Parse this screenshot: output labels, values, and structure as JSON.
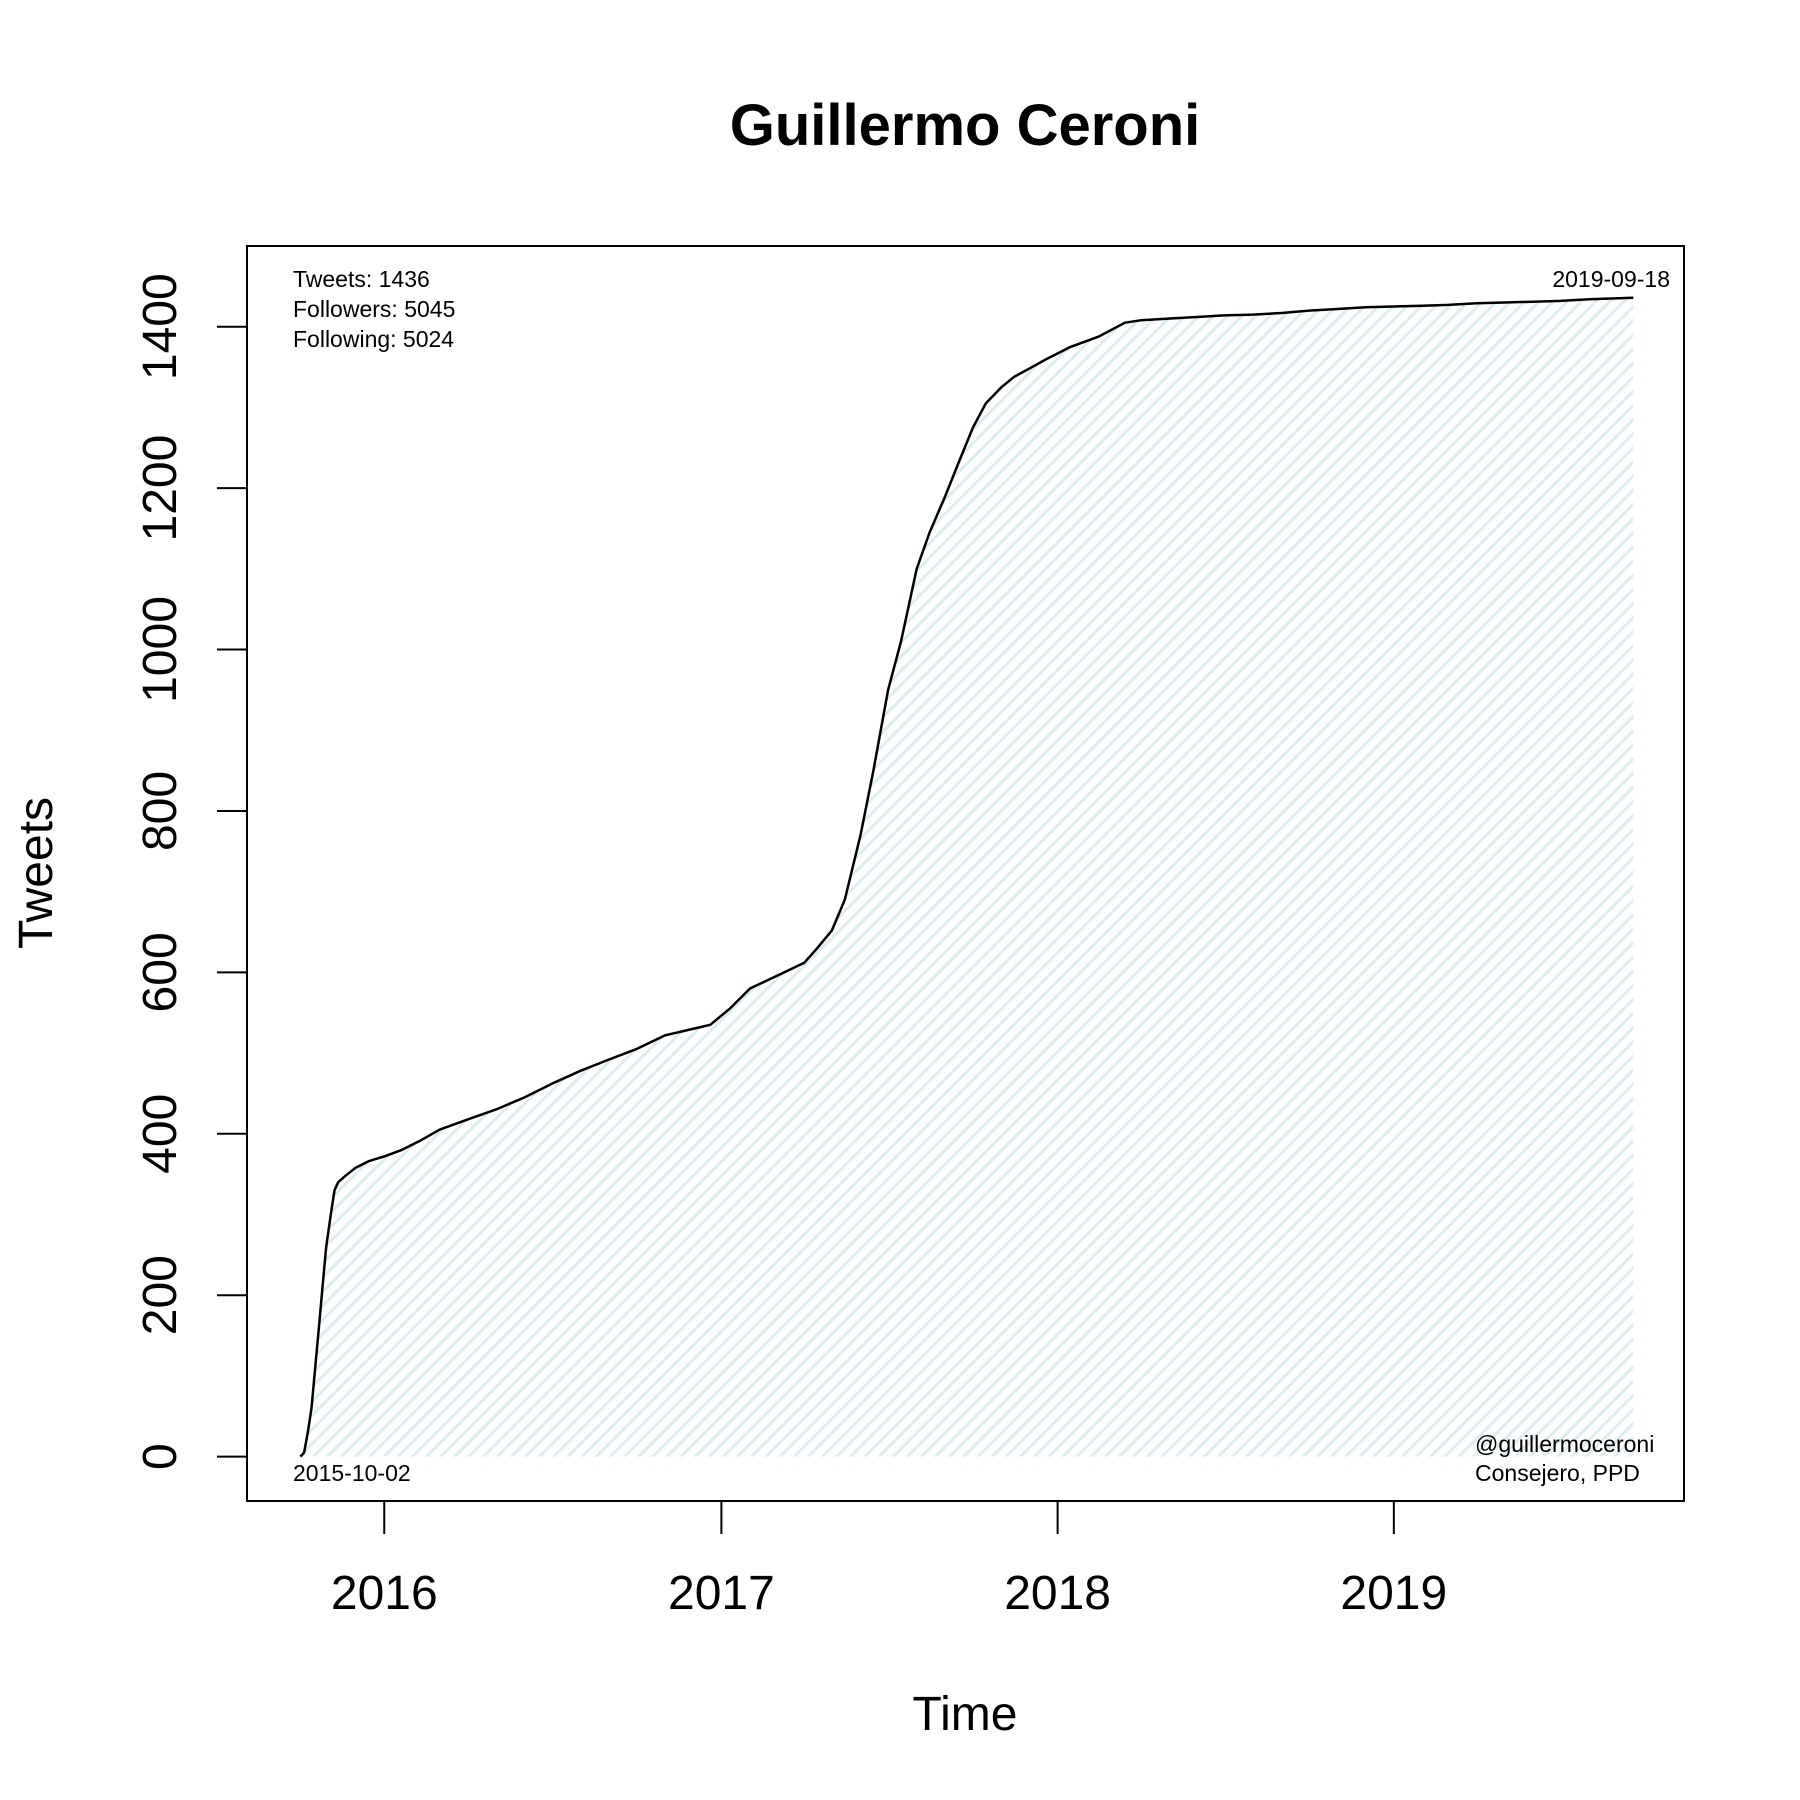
{
  "chart_data": {
    "type": "line",
    "title": "Guillermo Ceroni",
    "xlabel": "Time",
    "ylabel": "Tweets",
    "x_tick_labels": [
      "2016",
      "2017",
      "2018",
      "2019"
    ],
    "x_tick_dates": [
      "2016-01-01",
      "2017-01-01",
      "2018-01-01",
      "2019-01-01"
    ],
    "xlim": [
      "2015-08-05",
      "2019-11-12"
    ],
    "y_ticks": [
      0,
      200,
      400,
      600,
      800,
      1000,
      1200,
      1400
    ],
    "y_tick_labels": [
      "0",
      "200",
      "400",
      "600",
      "800",
      "1000",
      "1200",
      "1400"
    ],
    "ylim": [
      -55,
      1500
    ],
    "fill_color": "#e4f3f5",
    "line_color": "#000000",
    "grid": false,
    "legend": "none",
    "series": [
      {
        "x": [
          "2015-10-02",
          "2015-10-06",
          "2015-10-10",
          "2015-10-14",
          "2015-10-18",
          "2015-10-22",
          "2015-10-26",
          "2015-10-30",
          "2015-11-04",
          "2015-11-08",
          "2015-11-12",
          "2015-11-20",
          "2015-12-01",
          "2015-12-15",
          "2016-01-01",
          "2016-01-20",
          "2016-02-10",
          "2016-03-01",
          "2016-04-01",
          "2016-05-01",
          "2016-06-01",
          "2016-07-01",
          "2016-08-01",
          "2016-09-01",
          "2016-10-01",
          "2016-11-01",
          "2016-12-01",
          "2016-12-20",
          "2017-01-10",
          "2017-02-01",
          "2017-03-01",
          "2017-04-01",
          "2017-04-15",
          "2017-05-01",
          "2017-05-15",
          "2017-06-01",
          "2017-06-15",
          "2017-07-01",
          "2017-07-15",
          "2017-08-01",
          "2017-08-15",
          "2017-09-01",
          "2017-09-15",
          "2017-10-01",
          "2017-10-15",
          "2017-11-01",
          "2017-11-15",
          "2017-12-01",
          "2017-12-20",
          "2018-01-15",
          "2018-02-15",
          "2018-03-15",
          "2018-04-01",
          "2018-05-01",
          "2018-06-01",
          "2018-07-01",
          "2018-08-01",
          "2018-09-01",
          "2018-10-01",
          "2018-11-01",
          "2018-12-01",
          "2019-01-01",
          "2019-02-01",
          "2019-03-01",
          "2019-04-01",
          "2019-05-01",
          "2019-06-01",
          "2019-07-01",
          "2019-08-01",
          "2019-09-18"
        ],
        "y": [
          0,
          5,
          30,
          60,
          110,
          160,
          210,
          260,
          300,
          330,
          340,
          348,
          358,
          366,
          372,
          380,
          392,
          405,
          418,
          430,
          445,
          462,
          478,
          492,
          505,
          522,
          530,
          535,
          555,
          580,
          595,
          612,
          630,
          652,
          690,
          770,
          850,
          950,
          1010,
          1100,
          1145,
          1190,
          1230,
          1275,
          1305,
          1325,
          1338,
          1348,
          1360,
          1375,
          1388,
          1405,
          1408,
          1410,
          1412,
          1414,
          1415,
          1417,
          1420,
          1422,
          1424,
          1425,
          1426,
          1427,
          1429,
          1430,
          1431,
          1432,
          1434,
          1436
        ]
      }
    ],
    "annotations": {
      "tweets": "Tweets: 1436",
      "followers": "Followers: 5045",
      "following": "Following: 5024",
      "start_date": "2015-10-02",
      "end_date": "2019-09-18",
      "handle": "@guillermoceroni",
      "role": "Consejero, PPD"
    }
  }
}
